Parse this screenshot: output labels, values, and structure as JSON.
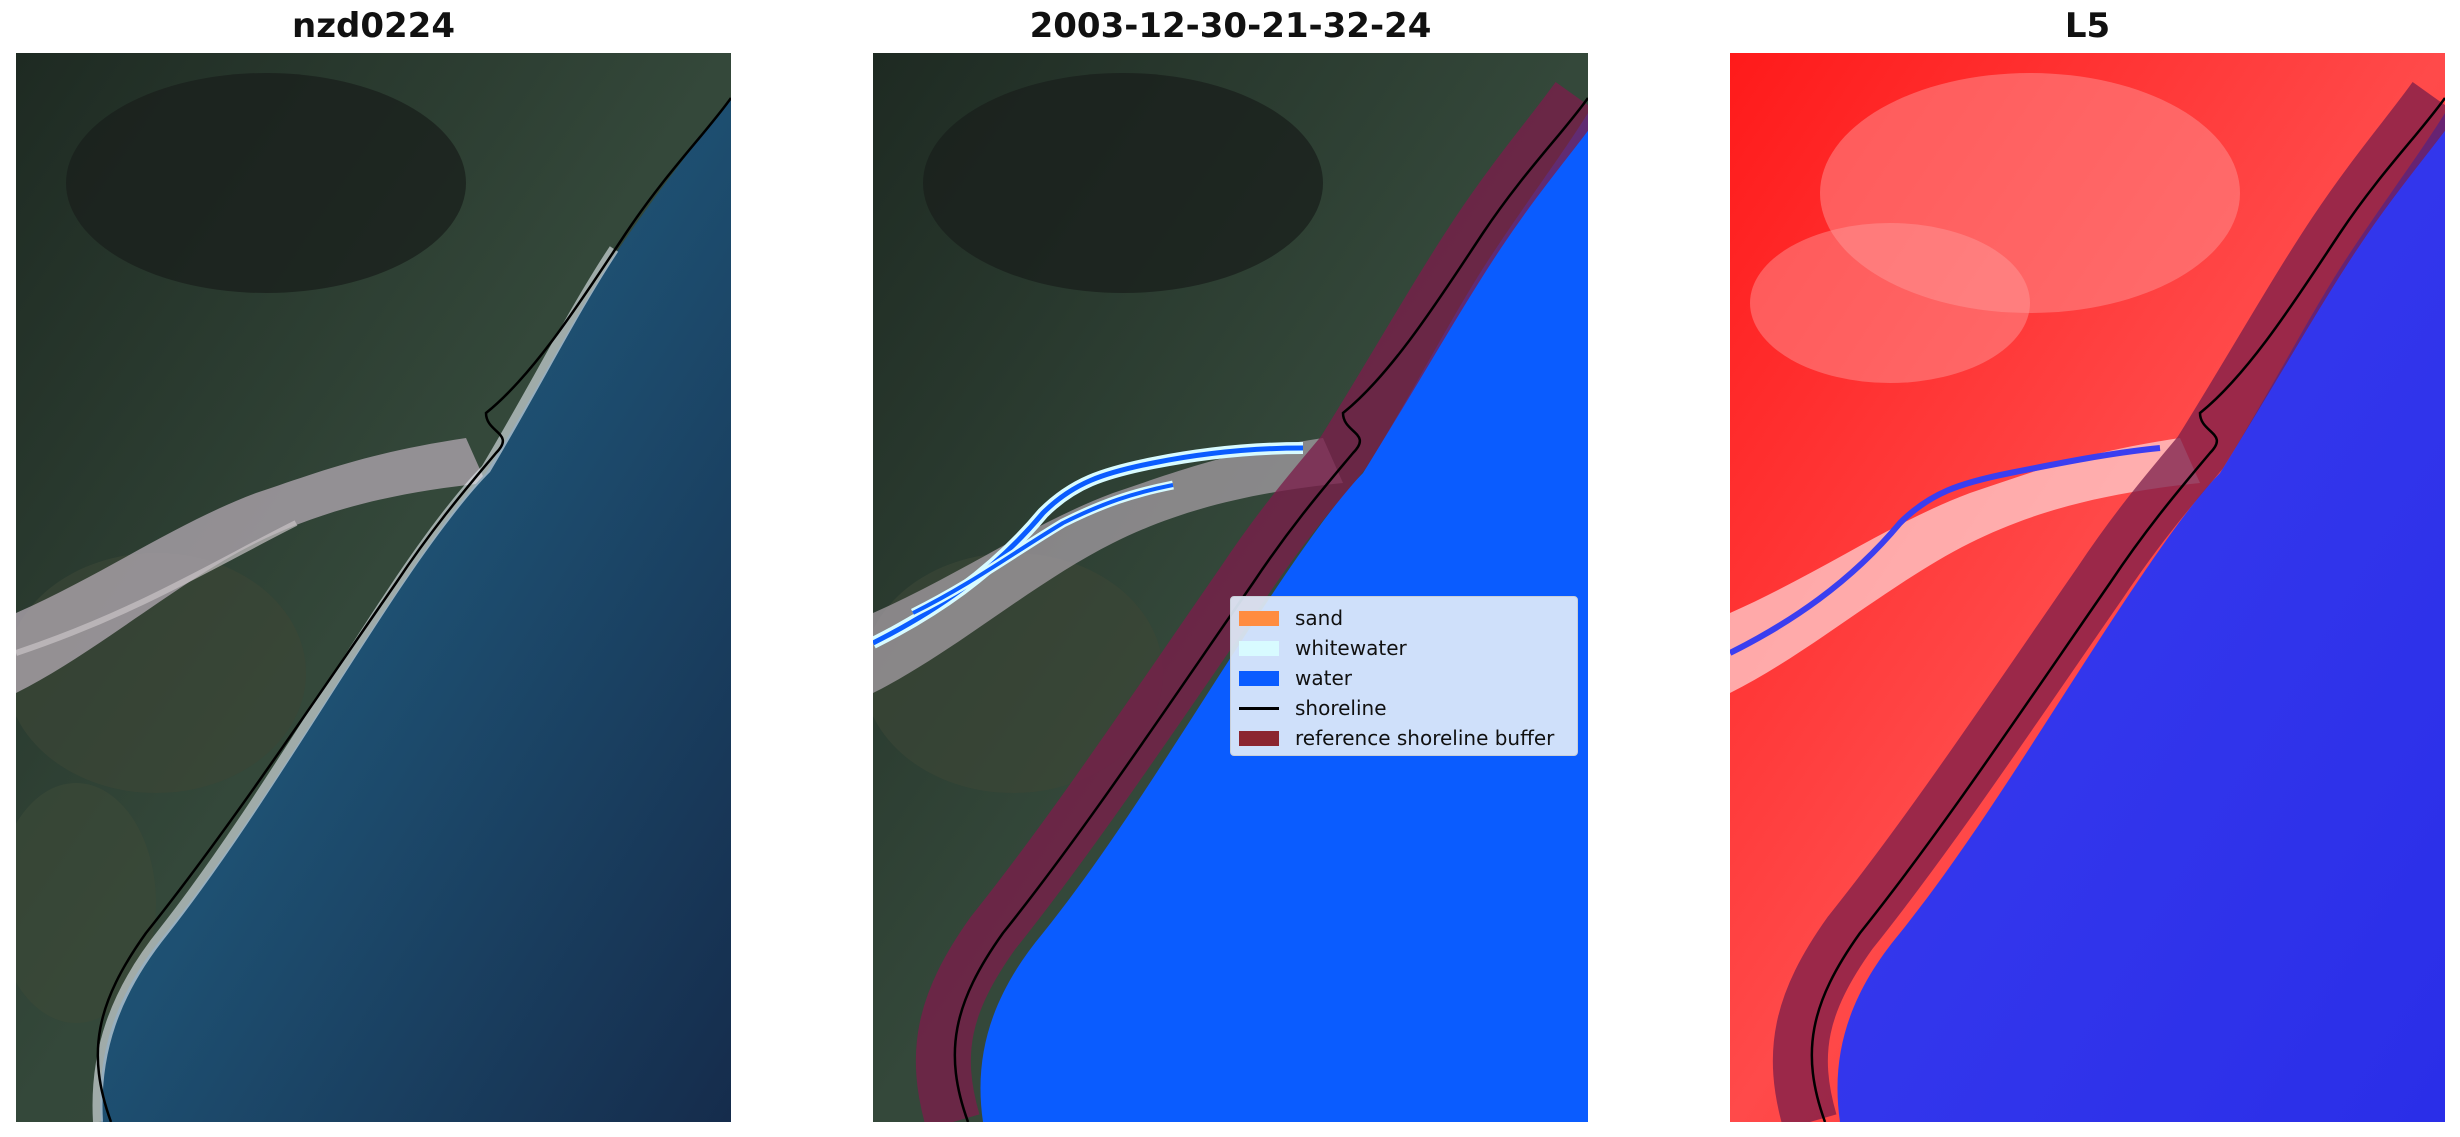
{
  "panels": [
    {
      "title": "nzd0224"
    },
    {
      "title": "2003-12-30-21-32-24"
    },
    {
      "title": "L5"
    }
  ],
  "legend": {
    "items": [
      {
        "label": "sand",
        "color": "#ff8c40",
        "kind": "patch"
      },
      {
        "label": "whitewater",
        "color": "#d8fbff",
        "kind": "patch"
      },
      {
        "label": "water",
        "color": "#0a5cff",
        "kind": "patch"
      },
      {
        "label": "shoreline",
        "color": "#000000",
        "kind": "line"
      },
      {
        "label": "reference shoreline buffer",
        "color": "#8b2530",
        "kind": "patch"
      }
    ]
  },
  "colors": {
    "land_dark": "#2b3a2c",
    "ocean": "#1d4f73",
    "water_class": "#0a5cff",
    "buffer": "#7a1e4a",
    "index_red": "#ff2020",
    "index_blue": "#2a2ef0"
  }
}
